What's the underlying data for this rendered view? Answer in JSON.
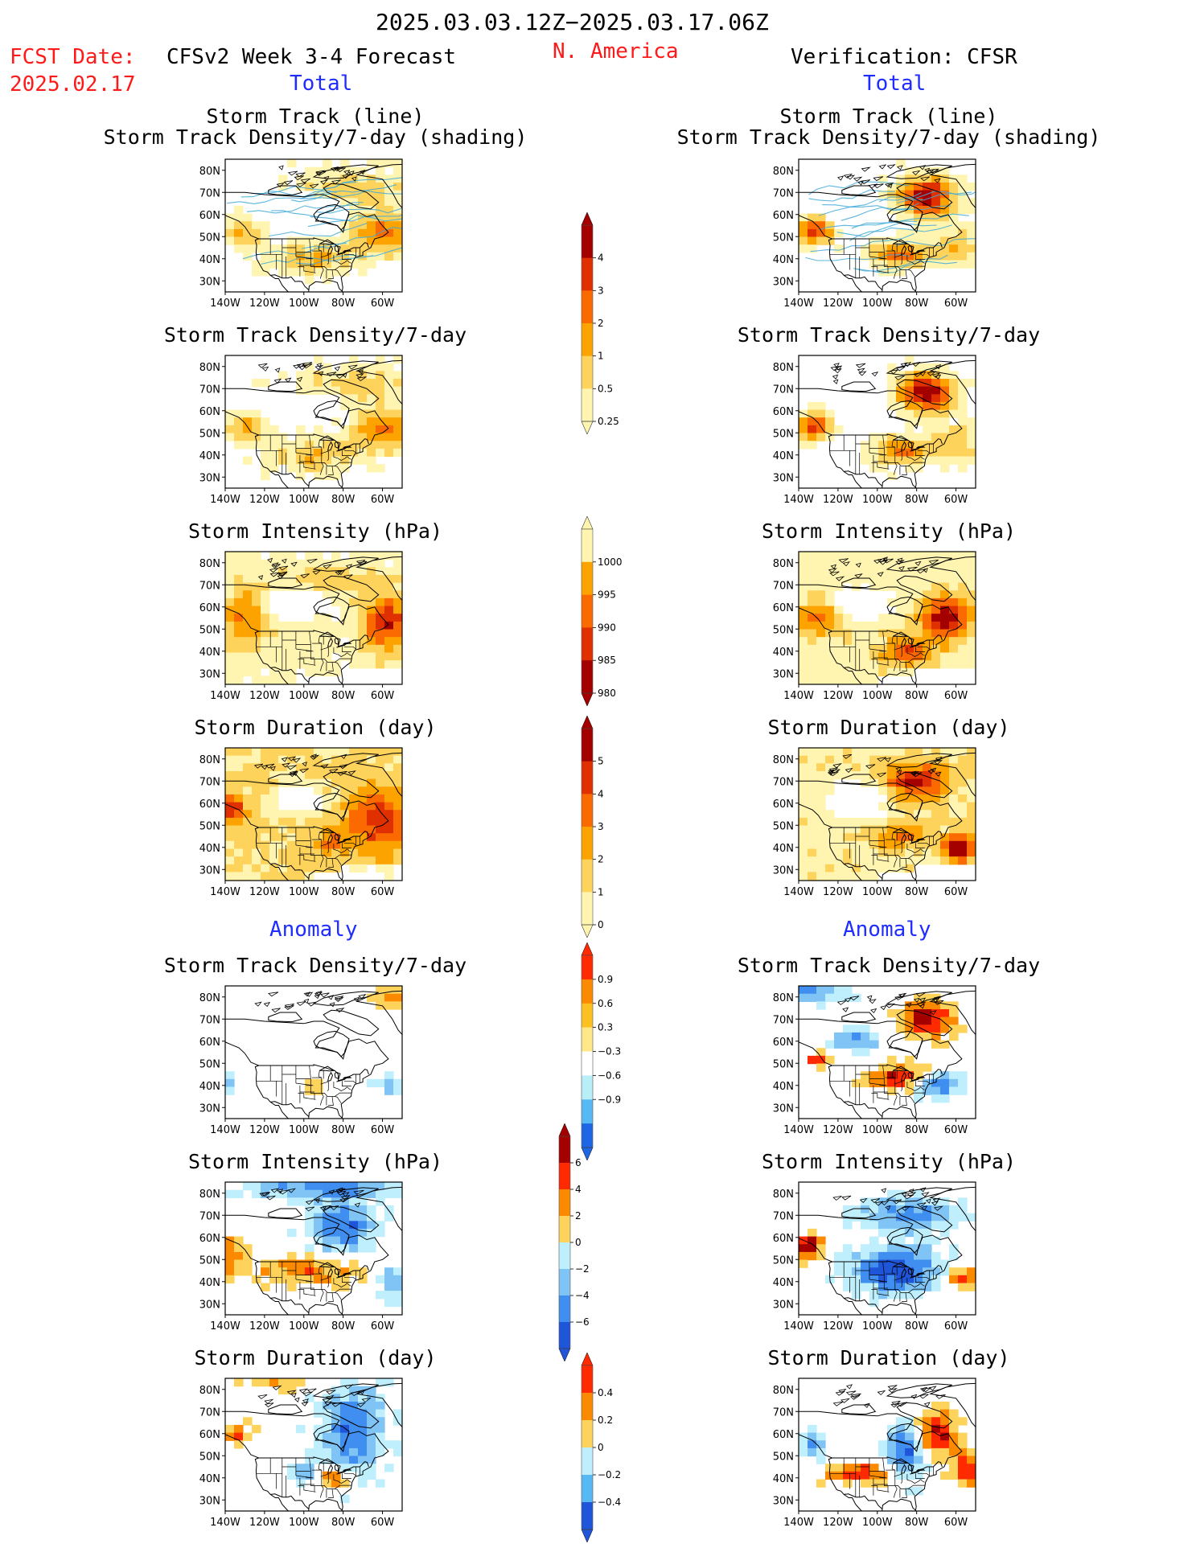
{
  "header": {
    "period": "2025.03.03.12Z−2025.03.17.06Z",
    "fcst_label": "FCST Date:",
    "fcst_date": "2025.02.17",
    "forecast_title": "CFSv2 Week 3-4 Forecast",
    "region": "N. America",
    "verification": "Verification: CFSR"
  },
  "sections": {
    "total": "Total",
    "anomaly": "Anomaly"
  },
  "panel_titles": {
    "track_line": "Storm Track (line)",
    "track_shading": "Storm Track Density/7-day (shading)",
    "density": "Storm Track Density/7-day",
    "intensity": "Storm Intensity (hPa)",
    "duration": "Storm Duration (day)"
  },
  "axes": {
    "lat_ticks": [
      "80N",
      "70N",
      "60N",
      "50N",
      "40N",
      "30N"
    ],
    "lon_ticks": [
      "140W",
      "120W",
      "100W",
      "80W",
      "60W"
    ]
  },
  "colorbars": {
    "density_total": {
      "labels": [
        "4",
        "3",
        "2",
        "1",
        "0.5",
        "0.25"
      ],
      "colors": [
        "#a50000",
        "#e03000",
        "#fb6a00",
        "#fca300",
        "#fdd35c",
        "#fff4b0"
      ]
    },
    "intensity_total": {
      "labels": [
        "1000",
        "995",
        "990",
        "985",
        "980"
      ],
      "colors": [
        "#fff4b0",
        "#fca300",
        "#fb6a00",
        "#e03000",
        "#a50000"
      ]
    },
    "duration_total": {
      "labels": [
        "5",
        "4",
        "3",
        "2",
        "1",
        "0"
      ],
      "colors": [
        "#a50000",
        "#e03000",
        "#fb6a00",
        "#fca300",
        "#fdd35c",
        "#fff4b0"
      ]
    },
    "density_anom": {
      "labels": [
        "0.9",
        "0.6",
        "0.3",
        "−0.3",
        "−0.6",
        "−0.9"
      ],
      "colors": [
        "#ff2a00",
        "#fc8a00",
        "#fcc020",
        "#ffe88a",
        "#ffffff",
        "#b7eef7",
        "#56b8f5",
        "#1f66e5"
      ]
    },
    "intensity_anom": {
      "labels": [
        "6",
        "4",
        "2",
        "0",
        "−2",
        "−4",
        "−6"
      ],
      "colors": [
        "#a50000",
        "#ff2a00",
        "#fc8a00",
        "#fdd35c",
        "#bfeffc",
        "#7fc4f5",
        "#3f8ef0",
        "#1f55d8"
      ]
    },
    "duration_anom": {
      "labels": [
        "0.4",
        "0.2",
        "0",
        "−0.2",
        "−0.4"
      ],
      "colors": [
        "#ff2a00",
        "#fc8a00",
        "#fdd35c",
        "#bfeffc",
        "#56b8f5",
        "#1f55d8"
      ]
    }
  }
}
